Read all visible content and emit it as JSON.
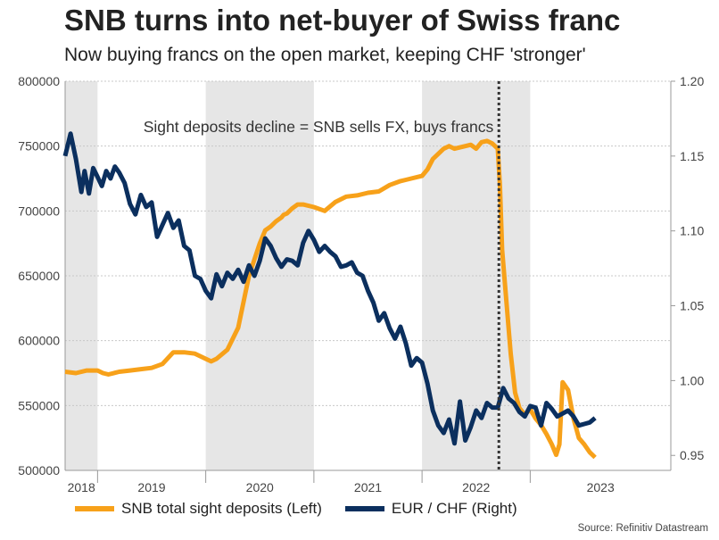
{
  "title": "SNB turns into net-buyer of Swiss franc",
  "subtitle": "Now buying francs on the open market, keeping CHF 'stronger'",
  "source": "Source: Refinitiv Datastream",
  "colors": {
    "deposits": "#f7a11a",
    "eurchf": "#0b2f5e",
    "shade": "#e6e6e6",
    "grid": "#c8c8c8"
  },
  "chart_data": {
    "type": "line",
    "title": "SNB turns into net-buyer of Swiss franc",
    "x_tick_labels": [
      "2018",
      "2019",
      "2020",
      "2021",
      "2022",
      "2023"
    ],
    "x_range": [
      2017.7,
      2023.3
    ],
    "y_left": {
      "range": [
        500000,
        800000
      ],
      "ticks": [
        "500000",
        "550000",
        "600000",
        "650000",
        "700000",
        "750000",
        "800000"
      ]
    },
    "y_right": {
      "range": [
        0.94,
        1.2
      ],
      "ticks": [
        "0.95",
        "1.00",
        "1.05",
        "1.10",
        "1.15",
        "1.20"
      ]
    },
    "shaded_years": [
      [
        2017.7,
        2018.0
      ],
      [
        2019.0,
        2020.0
      ],
      [
        2021.0,
        2022.0
      ]
    ],
    "vline_x": 2021.71,
    "annotation": "Sight deposits decline = SNB sells FX, buys francs",
    "series": [
      {
        "name": "SNB total sight deposits (Left)",
        "axis": "left",
        "x": [
          2017.7,
          2017.8,
          2017.9,
          2018.0,
          2018.05,
          2018.1,
          2018.2,
          2018.3,
          2018.4,
          2018.5,
          2018.6,
          2018.7,
          2018.75,
          2018.8,
          2018.9,
          2019.0,
          2019.05,
          2019.1,
          2019.2,
          2019.3,
          2019.4,
          2019.5,
          2019.55,
          2019.6,
          2019.65,
          2019.7,
          2019.72,
          2019.75,
          2019.8,
          2019.85,
          2019.9,
          2020.0,
          2020.1,
          2020.2,
          2020.3,
          2020.4,
          2020.5,
          2020.6,
          2020.7,
          2020.8,
          2020.85,
          2020.9,
          2021.0,
          2021.05,
          2021.1,
          2021.2,
          2021.25,
          2021.3,
          2021.4,
          2021.45,
          2021.5,
          2021.55,
          2021.6,
          2021.65,
          2021.7,
          2021.72,
          2021.74,
          2021.78,
          2021.82,
          2021.86,
          2021.9,
          2021.95,
          2022.0,
          2022.05,
          2022.1,
          2022.15,
          2022.2,
          2022.24,
          2022.27,
          2022.3,
          2022.35,
          2022.4,
          2022.45,
          2022.5,
          2022.55,
          2022.6
        ],
        "values": [
          576000,
          575000,
          577000,
          577000,
          575000,
          574000,
          576000,
          577000,
          578000,
          579000,
          582000,
          591000,
          591000,
          591000,
          590000,
          586000,
          584000,
          586000,
          593000,
          610000,
          650000,
          675000,
          685000,
          688000,
          692000,
          695000,
          697000,
          698000,
          702000,
          705000,
          705000,
          703000,
          700000,
          707000,
          711000,
          712000,
          714000,
          715000,
          720000,
          723000,
          724000,
          725000,
          727000,
          732000,
          740000,
          748000,
          750000,
          748000,
          750000,
          751000,
          748000,
          753000,
          754000,
          752000,
          748000,
          720000,
          670000,
          630000,
          590000,
          560000,
          548000,
          543000,
          547000,
          540000,
          535000,
          528000,
          520000,
          512000,
          520000,
          568000,
          562000,
          540000,
          525000,
          520000,
          514000,
          510000
        ]
      },
      {
        "name": "EUR / CHF (Right)",
        "axis": "right",
        "x": [
          2017.7,
          2017.75,
          2017.8,
          2017.85,
          2017.88,
          2017.92,
          2017.96,
          2018.0,
          2018.04,
          2018.08,
          2018.12,
          2018.16,
          2018.2,
          2018.25,
          2018.3,
          2018.35,
          2018.4,
          2018.45,
          2018.5,
          2018.55,
          2018.6,
          2018.65,
          2018.7,
          2018.75,
          2018.8,
          2018.85,
          2018.9,
          2018.95,
          2019.0,
          2019.05,
          2019.1,
          2019.15,
          2019.2,
          2019.25,
          2019.3,
          2019.35,
          2019.4,
          2019.45,
          2019.5,
          2019.55,
          2019.6,
          2019.65,
          2019.7,
          2019.75,
          2019.8,
          2019.85,
          2019.9,
          2019.95,
          2020.0,
          2020.05,
          2020.1,
          2020.15,
          2020.2,
          2020.25,
          2020.3,
          2020.35,
          2020.4,
          2020.45,
          2020.5,
          2020.55,
          2020.6,
          2020.65,
          2020.7,
          2020.75,
          2020.8,
          2020.85,
          2020.9,
          2020.95,
          2021.0,
          2021.05,
          2021.1,
          2021.15,
          2021.2,
          2021.25,
          2021.3,
          2021.35,
          2021.4,
          2021.45,
          2021.5,
          2021.55,
          2021.6,
          2021.65,
          2021.7,
          2021.75,
          2021.8,
          2021.85,
          2021.9,
          2021.95,
          2022.0,
          2022.05,
          2022.1,
          2022.15,
          2022.2,
          2022.25,
          2022.3,
          2022.35,
          2022.4,
          2022.45,
          2022.5,
          2022.55,
          2022.6
        ],
        "values": [
          1.15,
          1.165,
          1.148,
          1.126,
          1.14,
          1.125,
          1.142,
          1.136,
          1.13,
          1.14,
          1.135,
          1.143,
          1.139,
          1.132,
          1.118,
          1.111,
          1.124,
          1.116,
          1.119,
          1.096,
          1.104,
          1.112,
          1.102,
          1.107,
          1.09,
          1.087,
          1.07,
          1.068,
          1.06,
          1.055,
          1.071,
          1.063,
          1.072,
          1.068,
          1.074,
          1.066,
          1.077,
          1.07,
          1.08,
          1.095,
          1.09,
          1.082,
          1.076,
          1.081,
          1.08,
          1.077,
          1.092,
          1.1,
          1.094,
          1.086,
          1.09,
          1.086,
          1.083,
          1.076,
          1.077,
          1.079,
          1.072,
          1.07,
          1.06,
          1.052,
          1.04,
          1.045,
          1.035,
          1.028,
          1.036,
          1.025,
          1.01,
          1.015,
          1.012,
          0.998,
          0.98,
          0.97,
          0.965,
          0.974,
          0.958,
          0.986,
          0.96,
          0.969,
          0.98,
          0.975,
          0.985,
          0.982,
          0.982,
          0.995,
          0.988,
          0.985,
          0.979,
          0.976,
          0.983,
          0.982,
          0.97,
          0.985,
          0.981,
          0.976,
          0.978,
          0.98,
          0.976,
          0.97,
          0.971,
          0.972,
          0.975
        ]
      }
    ]
  }
}
